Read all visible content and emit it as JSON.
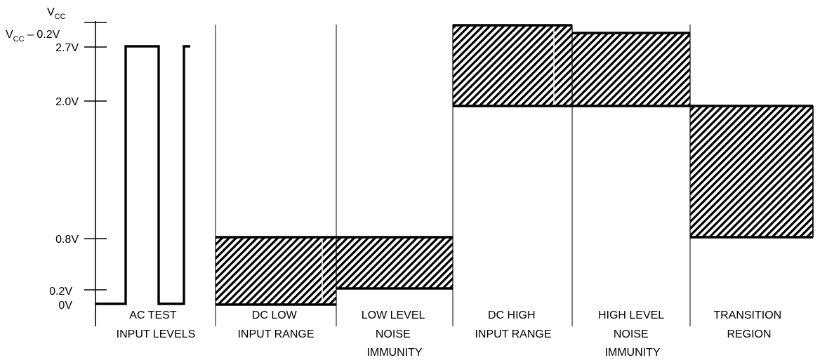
{
  "y_axis": {
    "labels": [
      {
        "key": "vcc",
        "main": "V",
        "sub": "CC",
        "tail": ""
      },
      {
        "key": "vcc_minus",
        "main": "V",
        "sub": "CC",
        "tail": " – 0.2V"
      },
      {
        "key": "v27",
        "text": "2.7V"
      },
      {
        "key": "v20",
        "text": "2.0V"
      },
      {
        "key": "v08",
        "text": "0.8V"
      },
      {
        "key": "v02",
        "text": "0.2V"
      },
      {
        "key": "v0",
        "text": "0V"
      }
    ]
  },
  "regions": [
    {
      "key": "ac-test",
      "lines": [
        "AC TEST",
        "INPUT LEVELS"
      ]
    },
    {
      "key": "dc-low",
      "lines": [
        "DC LOW",
        "INPUT RANGE"
      ]
    },
    {
      "key": "low-noise",
      "lines": [
        "LOW LEVEL",
        "NOISE",
        "IMMUNITY"
      ]
    },
    {
      "key": "dc-high",
      "lines": [
        "DC HIGH",
        "INPUT RANGE"
      ]
    },
    {
      "key": "high-noise",
      "lines": [
        "HIGH LEVEL",
        "NOISE",
        "IMMUNITY"
      ]
    },
    {
      "key": "transition",
      "lines": [
        "TRANSITION",
        "REGION"
      ]
    }
  ],
  "colors": {
    "ink": "#000000",
    "background": "#ffffff"
  }
}
